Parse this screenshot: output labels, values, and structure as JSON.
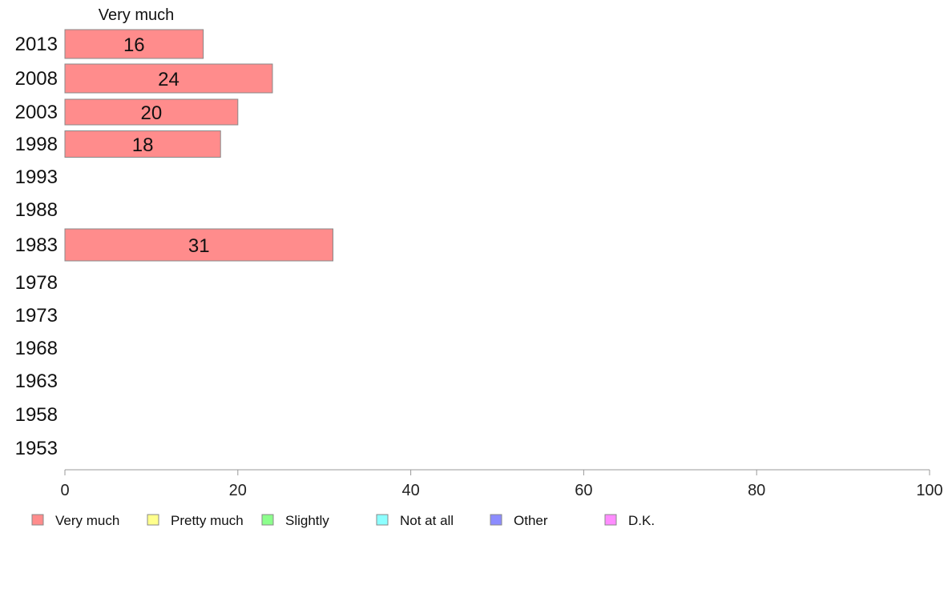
{
  "chart_data": {
    "type": "bar",
    "orientation": "horizontal",
    "categories": [
      "2013",
      "2008",
      "2003",
      "1998",
      "1993",
      "1988",
      "1983",
      "1978",
      "1973",
      "1968",
      "1963",
      "1958",
      "1953"
    ],
    "series": [
      {
        "name": "Very much",
        "color": "#ff8c8c",
        "values": [
          16,
          24,
          20,
          18,
          null,
          null,
          31,
          null,
          null,
          null,
          null,
          null,
          null
        ]
      }
    ],
    "series_title": "Very much",
    "xlim": [
      0,
      100
    ],
    "xticks": [
      0,
      20,
      40,
      60,
      80,
      100
    ],
    "grid": false,
    "legend": {
      "position": "bottom-left",
      "items": [
        {
          "label": "Very much",
          "color": "#ff8c8c"
        },
        {
          "label": "Pretty much",
          "color": "#ffff8c"
        },
        {
          "label": "Slightly",
          "color": "#8cff8c"
        },
        {
          "label": "Not at all",
          "color": "#8cffff"
        },
        {
          "label": "Other",
          "color": "#8c8cff"
        },
        {
          "label": "D.K.",
          "color": "#ff8cff"
        }
      ]
    }
  }
}
